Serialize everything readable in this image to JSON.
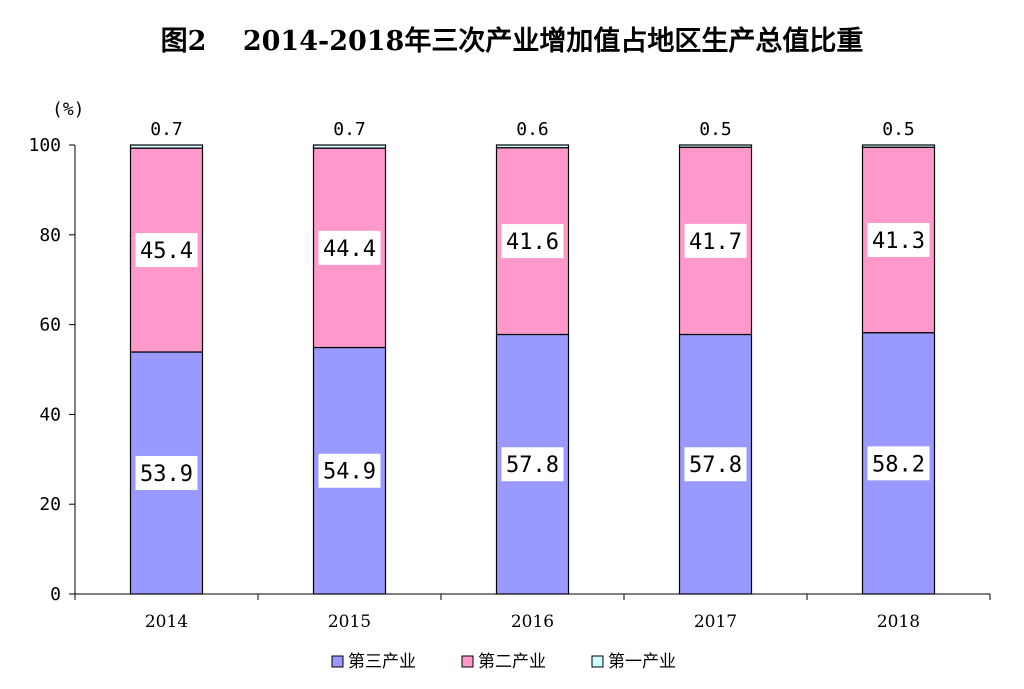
{
  "chart_data": {
    "type": "bar",
    "stacked": true,
    "title": "图2　 2014-2018年三次产业增加值占地区生产总值比重",
    "unit_label": "(%)",
    "categories": [
      "2014",
      "2015",
      "2016",
      "2017",
      "2018"
    ],
    "series": [
      {
        "name": "第三产业",
        "values": [
          53.9,
          54.9,
          57.8,
          57.8,
          58.2
        ],
        "color": "#9999ff",
        "label_position": "inside"
      },
      {
        "name": "第二产业",
        "values": [
          45.4,
          44.4,
          41.6,
          41.7,
          41.3
        ],
        "color": "#ff99cc",
        "label_position": "inside"
      },
      {
        "name": "第一产业",
        "values": [
          0.7,
          0.7,
          0.6,
          0.5,
          0.5
        ],
        "color": "#ccffff",
        "label_position": "above"
      }
    ],
    "ylim": [
      0,
      100
    ],
    "yticks": [
      0,
      20,
      40,
      60,
      80,
      100
    ],
    "grid": false,
    "legend_position": "bottom",
    "xlabel": "",
    "ylabel": ""
  }
}
